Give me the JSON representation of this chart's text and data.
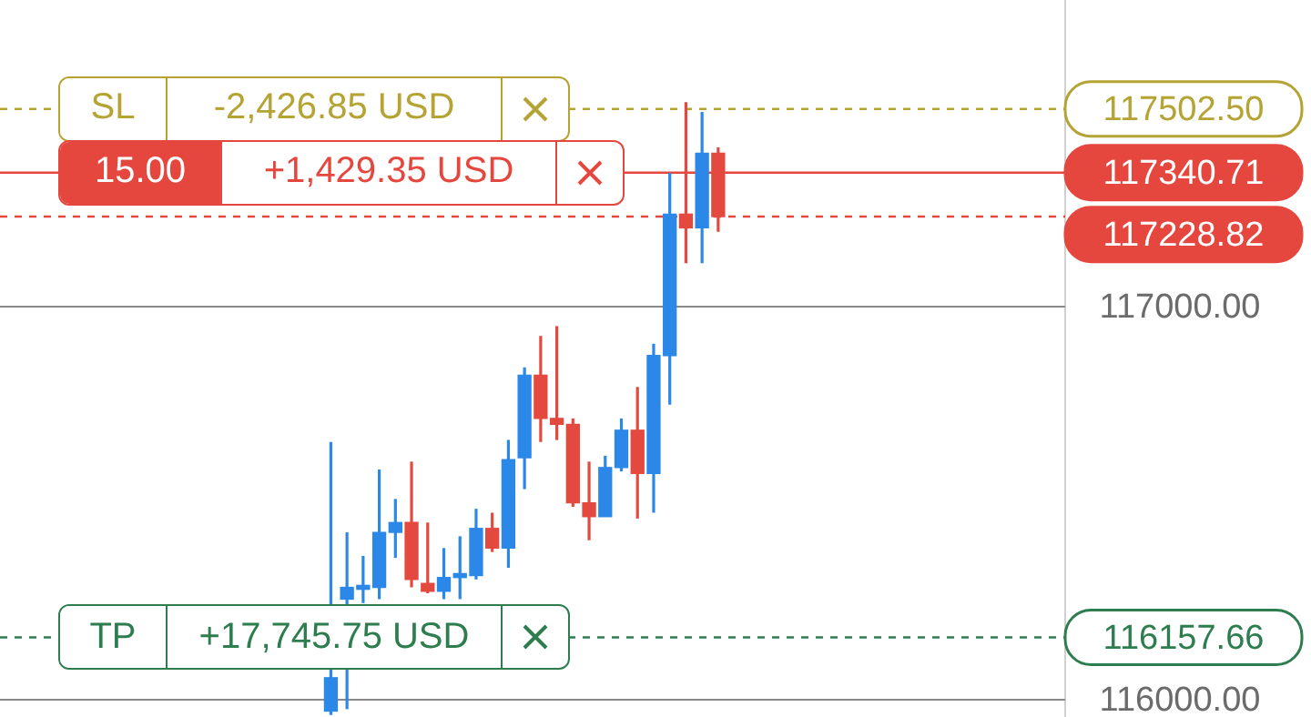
{
  "chart_data": {
    "type": "candlestick",
    "categories": [
      null,
      null,
      null,
      null,
      null,
      null,
      null,
      null,
      null,
      null,
      null,
      null,
      null,
      null,
      null,
      null,
      null,
      null,
      null,
      null,
      null,
      null,
      null,
      null,
      null,
      null,
      null,
      null,
      null,
      null,
      null,
      null,
      null,
      null,
      null,
      null,
      null,
      null,
      null,
      null,
      null,
      null,
      null,
      null,
      null,
      null,
      null,
      null,
      null,
      null,
      null,
      null,
      null,
      null,
      null,
      null,
      null,
      null,
      null,
      null,
      null,
      null,
      null,
      null,
      null,
      null
    ],
    "ohlc": [
      null,
      null,
      null,
      null,
      null,
      null,
      null,
      null,
      null,
      null,
      null,
      null,
      null,
      null,
      null,
      null,
      null,
      null,
      null,
      null,
      [
        115970,
        116655,
        115960,
        116055
      ],
      [
        116255,
        116425,
        115975,
        116285
      ],
      [
        116280,
        116365,
        116245,
        116290
      ],
      [
        116285,
        116585,
        116255,
        116425
      ],
      [
        116425,
        116510,
        116360,
        116450
      ],
      [
        116450,
        116605,
        116285,
        116305
      ],
      [
        116295,
        116450,
        116270,
        116275
      ],
      [
        116275,
        116385,
        116255,
        116310
      ],
      [
        116310,
        116415,
        116255,
        116320
      ],
      [
        116315,
        116485,
        116305,
        116435
      ],
      [
        116435,
        116475,
        116375,
        116385
      ],
      [
        116385,
        116660,
        116335,
        116610
      ],
      [
        116615,
        116845,
        116535,
        116825
      ],
      [
        116825,
        116925,
        116655,
        116715
      ],
      [
        116715,
        116950,
        116660,
        116700
      ],
      [
        116700,
        116715,
        116490,
        116500
      ],
      [
        116500,
        116605,
        116405,
        116465
      ],
      [
        116465,
        116620,
        116465,
        116590
      ],
      [
        116590,
        116715,
        116580,
        116685
      ],
      [
        116685,
        116795,
        116460,
        116575
      ],
      [
        116575,
        116905,
        116475,
        116875
      ],
      [
        116875,
        117340,
        116750,
        117235
      ],
      [
        117235,
        117520,
        117110,
        117200
      ],
      [
        117200,
        117495,
        117110,
        117390
      ],
      [
        117390,
        117405,
        117190,
        117228.82
      ],
      null,
      null,
      null,
      null,
      null,
      null,
      null,
      null,
      null,
      null,
      null,
      null,
      null,
      null,
      null,
      null,
      null,
      null,
      null,
      null,
      null
    ],
    "colors": [
      null,
      null,
      null,
      null,
      null,
      null,
      null,
      null,
      null,
      null,
      null,
      null,
      null,
      null,
      null,
      null,
      null,
      null,
      null,
      null,
      "#2b87e8",
      "#2b87e8",
      "#2b87e8",
      "#2b87e8",
      "#2b87e8",
      "#e4493f",
      "#e4493f",
      "#2b87e8",
      "#2b87e8",
      "#2b87e8",
      "#e4493f",
      "#2b87e8",
      "#2b87e8",
      "#e4493f",
      "#e4493f",
      "#e4493f",
      "#e4493f",
      "#2b87e8",
      "#2b87e8",
      "#e4493f",
      "#2b87e8",
      "#2b87e8",
      "#e4493f",
      "#2b87e8",
      "#e4493f",
      null,
      null,
      null,
      null,
      null,
      null,
      null,
      null,
      null,
      null,
      null,
      null,
      null,
      null,
      null,
      null,
      null,
      null,
      null,
      null,
      null
    ],
    "ylim": [
      115955,
      117780
    ],
    "yticks": [
      {
        "value": 116000,
        "label": "116000.00"
      },
      {
        "value": 117000,
        "label": "117000.00"
      }
    ],
    "grid": "y",
    "tick_labels": "y",
    "legend": false,
    "ref_lines": [
      {
        "axis": "y",
        "value": 117502.5,
        "label": "117502.50",
        "color": "#b5a334",
        "line_style": "dashed"
      },
      {
        "axis": "y",
        "value": 117340.71,
        "label": "117340.71",
        "color": "#e5473f",
        "line_style": "solid"
      },
      {
        "axis": "y",
        "value": 117228.82,
        "label": "117228.82",
        "color": "#e5473f",
        "line_style": "dashed"
      },
      {
        "axis": "y",
        "value": 116157.66,
        "label": "116157.66",
        "color": "#2e7d4f",
        "line_style": "dashed"
      }
    ],
    "annotations": [
      {
        "text": "SL",
        "y": 117502.5
      },
      {
        "text": "-2,426.85 USD",
        "y": 117502.5
      },
      {
        "text": "15.00",
        "y": 117340.71
      },
      {
        "text": "+1,429.35 USD",
        "y": 117340.71
      },
      {
        "text": "TP",
        "y": 116157.66
      },
      {
        "text": "+17,745.75 USD",
        "y": 116157.66
      }
    ]
  }
}
